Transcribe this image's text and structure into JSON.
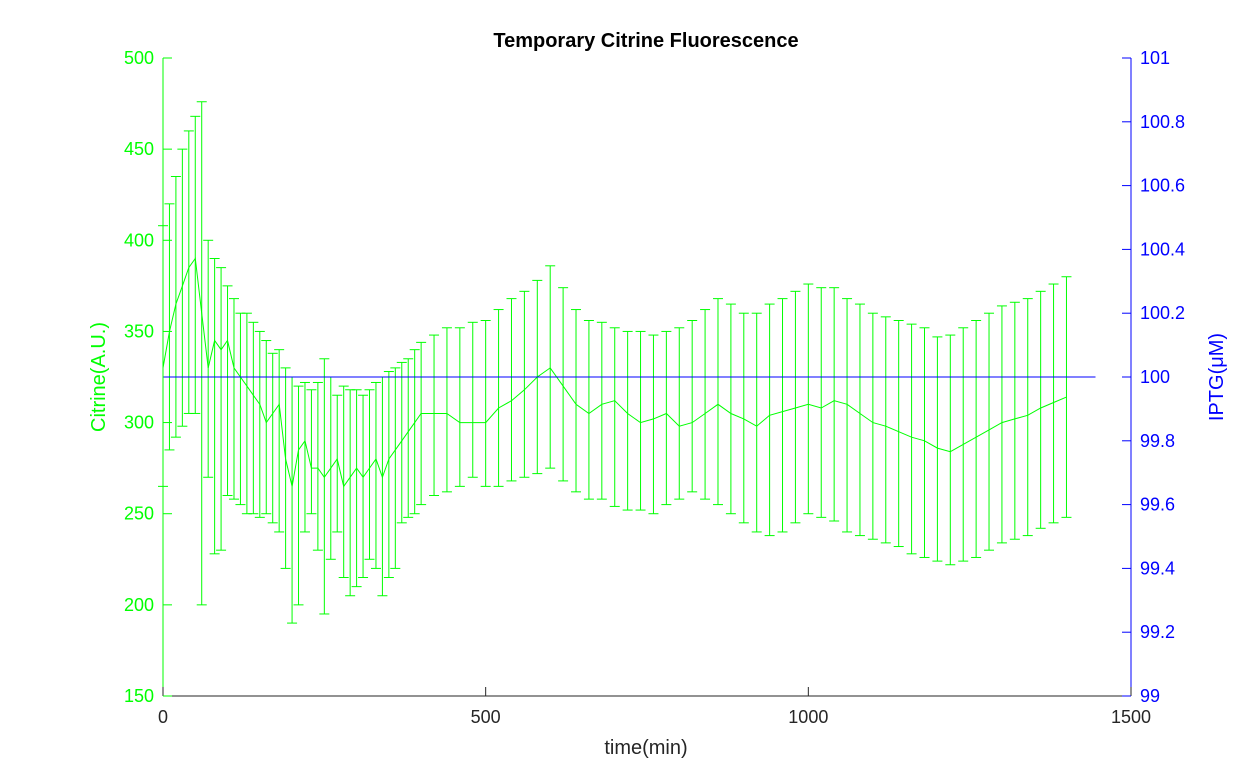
{
  "chart_data": {
    "type": "line",
    "title": "Temporary Citrine Fluorescence",
    "xlabel": "time(min)",
    "ylabel_left": "Citrine(A.U.)",
    "ylabel_right": "IPTG(μM)",
    "xlim": [
      0,
      1500
    ],
    "ylim_left": [
      150,
      500
    ],
    "ylim_right": [
      99,
      101
    ],
    "x_ticks": [
      "0",
      "500",
      "1000",
      "1500"
    ],
    "y_ticks_left": [
      "150",
      "200",
      "250",
      "300",
      "350",
      "400",
      "450",
      "500"
    ],
    "y_ticks_right": [
      "99",
      "99.2",
      "99.4",
      "99.6",
      "99.8",
      "100",
      "100.2",
      "100.4",
      "100.6",
      "100.8",
      "101"
    ],
    "grid": false,
    "colors": {
      "citrine": "#00ff00",
      "iptg": "#0000ff",
      "axes": "#262626"
    },
    "series": [
      {
        "axis": "left",
        "style": "line-with-errorbars",
        "x": [
          0,
          10,
          20,
          30,
          40,
          50,
          60,
          70,
          80,
          90,
          100,
          110,
          120,
          130,
          140,
          150,
          160,
          170,
          180,
          190,
          200,
          210,
          220,
          230,
          240,
          250,
          260,
          270,
          280,
          290,
          300,
          310,
          320,
          330,
          340,
          350,
          360,
          370,
          380,
          390,
          400,
          420,
          440,
          460,
          480,
          500,
          520,
          540,
          560,
          580,
          600,
          620,
          640,
          660,
          680,
          700,
          720,
          740,
          760,
          780,
          800,
          820,
          840,
          860,
          880,
          900,
          920,
          940,
          960,
          980,
          1000,
          1020,
          1040,
          1060,
          1080,
          1100,
          1120,
          1140,
          1160,
          1180,
          1200,
          1220,
          1240,
          1260,
          1280,
          1300,
          1320,
          1340,
          1360,
          1380,
          1400
        ],
        "y": [
          330,
          350,
          365,
          375,
          385,
          390,
          360,
          330,
          345,
          340,
          345,
          330,
          325,
          320,
          315,
          310,
          300,
          305,
          310,
          280,
          265,
          285,
          290,
          275,
          275,
          270,
          275,
          280,
          265,
          270,
          275,
          270,
          275,
          280,
          270,
          280,
          285,
          290,
          295,
          300,
          305,
          305,
          305,
          300,
          300,
          300,
          308,
          312,
          318,
          325,
          330,
          320,
          310,
          305,
          310,
          312,
          305,
          300,
          302,
          305,
          298,
          300,
          305,
          310,
          305,
          302,
          298,
          304,
          306,
          308,
          310,
          308,
          312,
          310,
          305,
          300,
          298,
          295,
          292,
          290,
          286,
          284,
          288,
          292,
          296,
          300,
          302,
          304,
          308,
          311,
          314
        ],
        "upper": [
          408,
          420,
          435,
          450,
          460,
          468,
          476,
          400,
          390,
          385,
          375,
          368,
          360,
          360,
          355,
          350,
          345,
          338,
          340,
          330,
          325,
          320,
          322,
          318,
          322,
          335,
          325,
          315,
          320,
          318,
          318,
          315,
          318,
          322,
          325,
          328,
          330,
          333,
          335,
          340,
          344,
          348,
          352,
          352,
          355,
          356,
          362,
          368,
          372,
          378,
          386,
          374,
          362,
          356,
          355,
          352,
          350,
          350,
          348,
          350,
          352,
          356,
          362,
          368,
          365,
          360,
          360,
          365,
          368,
          372,
          376,
          374,
          374,
          368,
          365,
          360,
          358,
          356,
          354,
          352,
          347,
          348,
          352,
          356,
          360,
          364,
          366,
          368,
          372,
          376,
          380
        ],
        "lower": [
          265,
          285,
          292,
          298,
          305,
          305,
          200,
          270,
          228,
          230,
          260,
          258,
          255,
          250,
          250,
          248,
          250,
          245,
          240,
          220,
          190,
          200,
          240,
          250,
          230,
          195,
          225,
          240,
          215,
          205,
          210,
          215,
          225,
          220,
          205,
          215,
          220,
          245,
          248,
          250,
          255,
          260,
          262,
          265,
          270,
          265,
          265,
          268,
          270,
          272,
          275,
          268,
          262,
          258,
          258,
          254,
          252,
          252,
          250,
          255,
          258,
          262,
          258,
          255,
          250,
          245,
          240,
          238,
          240,
          245,
          250,
          248,
          246,
          240,
          238,
          236,
          234,
          232,
          228,
          226,
          224,
          222,
          224,
          226,
          230,
          234,
          236,
          238,
          242,
          245,
          248
        ]
      },
      {
        "axis": "right",
        "style": "line",
        "x": [
          0,
          1445
        ],
        "y": [
          100,
          100
        ]
      }
    ]
  }
}
